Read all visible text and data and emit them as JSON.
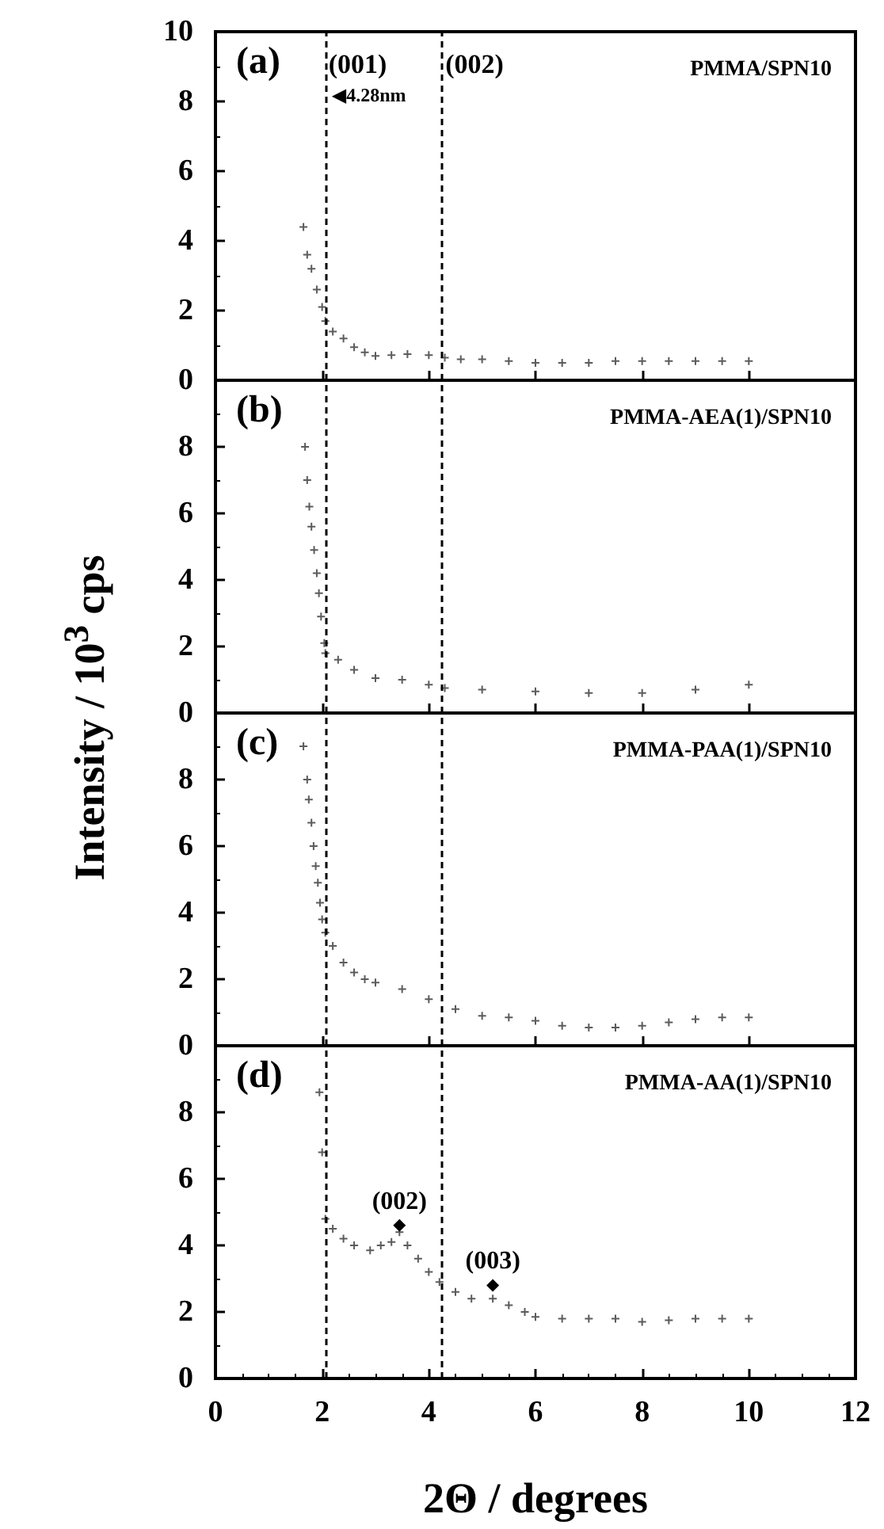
{
  "chart_data": [
    {
      "type": "scatter",
      "title": "(a)",
      "subtitle": "PMMA/SPN10",
      "ylabel": "Intensity / 10$^{3}$ cps",
      "marker": "cross",
      "tick_labels": "y",
      "xlim": [
        0,
        12
      ],
      "xticks": [
        0,
        2,
        4,
        6,
        8,
        10,
        12
      ],
      "ylim": [
        0,
        10
      ],
      "yticks": [
        0,
        2,
        4,
        6,
        8,
        10
      ],
      "ref_lines": [
        {
          "axis": "x",
          "value": 2.06,
          "line_style": "dashed"
        },
        {
          "axis": "x",
          "value": 4.25,
          "line_style": "dashed"
        }
      ],
      "annotations": [
        "(001)",
        "(002)",
        "◀4.28nm"
      ],
      "x": [
        1.65,
        1.72,
        1.8,
        1.9,
        2.0,
        2.06,
        2.2,
        2.4,
        2.6,
        2.8,
        3.0,
        3.3,
        3.6,
        4.0,
        4.3,
        4.6,
        5.0,
        5.5,
        6.0,
        6.5,
        7.0,
        7.5,
        8.0,
        8.5,
        9.0,
        9.5,
        10.0
      ],
      "series": [
        {
          "color": "#333333",
          "values": [
            4.4,
            3.6,
            3.2,
            2.6,
            2.1,
            1.7,
            1.4,
            1.2,
            0.95,
            0.8,
            0.7,
            0.72,
            0.75,
            0.72,
            0.65,
            0.6,
            0.6,
            0.55,
            0.5,
            0.5,
            0.5,
            0.55,
            0.55,
            0.55,
            0.55,
            0.55,
            0.55
          ]
        }
      ]
    },
    {
      "type": "scatter",
      "title": "(b)",
      "subtitle": "PMMA-AEA(1)/SPN10",
      "marker": "cross",
      "tick_labels": "y",
      "xlim": [
        0,
        12
      ],
      "xticks": [
        0,
        2,
        4,
        6,
        8,
        10,
        12
      ],
      "ylim": [
        0,
        10
      ],
      "yticks": [
        0,
        2,
        4,
        6,
        8
      ],
      "ref_lines": [
        {
          "axis": "x",
          "value": 2.06,
          "line_style": "dashed"
        },
        {
          "axis": "x",
          "value": 4.25,
          "line_style": "dashed"
        }
      ],
      "x": [
        1.68,
        1.72,
        1.76,
        1.8,
        1.85,
        1.9,
        1.94,
        1.98,
        2.04,
        2.06,
        2.3,
        2.6,
        3.0,
        3.5,
        4.0,
        4.3,
        5.0,
        6.0,
        7.0,
        8.0,
        9.0,
        10.0
      ],
      "series": [
        {
          "color": "#333333",
          "values": [
            8.0,
            7.0,
            6.2,
            5.6,
            4.9,
            4.2,
            3.6,
            2.9,
            2.1,
            1.8,
            1.6,
            1.3,
            1.05,
            1.0,
            0.85,
            0.75,
            0.7,
            0.65,
            0.6,
            0.6,
            0.7,
            0.85
          ]
        }
      ]
    },
    {
      "type": "scatter",
      "title": "(c)",
      "subtitle": "PMMA-PAA(1)/SPN10",
      "marker": "cross",
      "tick_labels": "y",
      "xlim": [
        0,
        12
      ],
      "xticks": [
        0,
        2,
        4,
        6,
        8,
        10,
        12
      ],
      "ylim": [
        0,
        10
      ],
      "yticks": [
        0,
        2,
        4,
        6,
        8
      ],
      "ref_lines": [
        {
          "axis": "x",
          "value": 2.06,
          "line_style": "dashed"
        },
        {
          "axis": "x",
          "value": 4.25,
          "line_style": "dashed"
        }
      ],
      "x": [
        1.65,
        1.72,
        1.75,
        1.8,
        1.84,
        1.88,
        1.92,
        1.96,
        2.0,
        2.06,
        2.2,
        2.4,
        2.6,
        2.8,
        3.0,
        3.5,
        4.0,
        4.5,
        5.0,
        5.5,
        6.0,
        6.5,
        7.0,
        7.5,
        8.0,
        8.5,
        9.0,
        9.5,
        10.0
      ],
      "series": [
        {
          "color": "#333333",
          "values": [
            9.0,
            8.0,
            7.4,
            6.7,
            6.0,
            5.4,
            4.9,
            4.3,
            3.8,
            3.4,
            3.0,
            2.5,
            2.2,
            2.0,
            1.9,
            1.7,
            1.4,
            1.1,
            0.9,
            0.85,
            0.75,
            0.6,
            0.55,
            0.55,
            0.6,
            0.7,
            0.8,
            0.85,
            0.85
          ]
        }
      ]
    },
    {
      "type": "scatter",
      "title": "(d)",
      "subtitle": "PMMA-AA(1)/SPN10",
      "xlabel": "2Θ / degrees",
      "marker": "cross",
      "xlim": [
        0,
        12
      ],
      "xticks": [
        0,
        2,
        4,
        6,
        8,
        10,
        12
      ],
      "ylim": [
        0,
        10
      ],
      "yticks": [
        0,
        2,
        4,
        6,
        8
      ],
      "ref_lines": [
        {
          "axis": "x",
          "value": 2.06,
          "line_style": "dashed"
        },
        {
          "axis": "x",
          "value": 4.25,
          "line_style": "dashed"
        }
      ],
      "annotations": [
        {
          "text": "(002)",
          "x": 3.45,
          "y": 4.6
        },
        {
          "text": "(003)",
          "x": 5.2,
          "y": 2.8
        }
      ],
      "x": [
        1.95,
        2.0,
        2.06,
        2.2,
        2.4,
        2.6,
        2.9,
        3.1,
        3.3,
        3.45,
        3.6,
        3.8,
        4.0,
        4.2,
        4.5,
        4.8,
        5.2,
        5.5,
        5.8,
        6.0,
        6.5,
        7.0,
        7.5,
        8.0,
        8.5,
        9.0,
        9.5,
        10.0
      ],
      "series": [
        {
          "color": "#333333",
          "values": [
            8.6,
            6.8,
            4.8,
            4.5,
            4.2,
            4.0,
            3.85,
            4.0,
            4.1,
            4.4,
            4.0,
            3.6,
            3.2,
            2.9,
            2.6,
            2.4,
            2.4,
            2.2,
            2.0,
            1.85,
            1.8,
            1.8,
            1.8,
            1.7,
            1.75,
            1.8,
            1.8,
            1.8
          ]
        }
      ]
    }
  ]
}
